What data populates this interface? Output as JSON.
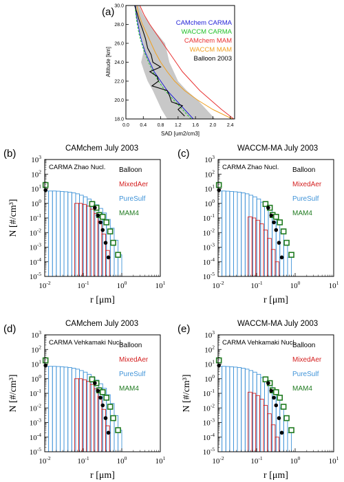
{
  "chart_data": [
    {
      "panel": "(a)",
      "type": "line",
      "title": "",
      "xlabel": "SAD [um2/cm3]",
      "ylabel": "Altitude [km]",
      "xlim": [
        0,
        2.5
      ],
      "ylim": [
        18,
        30
      ],
      "xticks": [
        "0.0",
        "0.4",
        "0.8",
        "1.2",
        "1.6",
        "2.0",
        "2.4"
      ],
      "yticks": [
        "18.0",
        "20.0",
        "22.0",
        "24.0",
        "26.0",
        "28.0",
        "30.0"
      ],
      "legend_position": "top-right",
      "colors": {
        "CAMchem CARMA": "#1f1fd6",
        "WACCM CARMA": "#22c02a",
        "CAMchem MAM": "#e83030",
        "WACCM MAM": "#f0a020",
        "Balloon 2003": "#000000"
      },
      "series": [
        {
          "name": "CAMchem CARMA",
          "style": "solid",
          "x": [
            1.55,
            1.35,
            1.15,
            0.95,
            0.8,
            0.65,
            0.55,
            0.45,
            0.38,
            0.32,
            0.28,
            0.24,
            0.22
          ],
          "y": [
            18,
            19,
            20,
            21,
            22,
            23,
            24,
            25,
            26,
            27,
            28,
            29,
            30
          ]
        },
        {
          "name": "WACCM CARMA",
          "style": "dashed",
          "x": [
            1.5,
            1.3,
            1.1,
            0.9,
            0.75,
            0.62,
            0.52,
            0.43,
            0.36,
            0.3,
            0.26,
            0.23,
            0.21
          ],
          "y": [
            18,
            19,
            20,
            21,
            22,
            23,
            24,
            25,
            26,
            27,
            28,
            29,
            30
          ]
        },
        {
          "name": "CAMchem MAM",
          "style": "solid",
          "x": [
            2.48,
            2.2,
            1.95,
            1.7,
            1.5,
            1.3,
            1.15,
            1.0,
            0.85,
            0.7,
            0.55,
            0.42,
            0.32
          ],
          "y": [
            18,
            19,
            20,
            21,
            22,
            23,
            24,
            25,
            26,
            27,
            28,
            29,
            30
          ]
        },
        {
          "name": "WACCM MAM",
          "style": "solid",
          "x": [
            2.45,
            2.0,
            1.65,
            1.35,
            1.12,
            0.95,
            0.8,
            0.68,
            0.58,
            0.48,
            0.38,
            0.3,
            0.25
          ],
          "y": [
            18,
            19,
            20,
            21,
            22,
            23,
            24,
            25,
            26,
            27,
            28,
            29,
            30
          ]
        },
        {
          "name": "Balloon 2003",
          "style": "solid",
          "x": [
            1.35,
            1.2,
            1.3,
            1.05,
            1.0,
            0.95,
            0.6,
            0.75,
            0.72,
            0.55,
            0.8,
            0.62,
            0.58,
            0.5,
            0.45,
            0.38,
            0.3,
            0.25,
            0.2
          ],
          "y": [
            18.3,
            19.0,
            19.4,
            19.8,
            20.5,
            21.0,
            21.5,
            22.0,
            22.5,
            23.0,
            23.5,
            24.0,
            24.8,
            25.5,
            26.5,
            27.5,
            28.5,
            29.3,
            30
          ]
        }
      ],
      "range_band": {
        "x_low": [
          0.95,
          0.82,
          0.72,
          0.62,
          0.5,
          0.42,
          0.35,
          0.4,
          0.4,
          0.33,
          0.28,
          0.22,
          0.2
        ],
        "x_high": [
          2.05,
          1.85,
          1.65,
          1.4,
          1.2,
          1.1,
          1.0,
          0.95,
          0.9,
          0.72,
          0.55,
          0.4,
          0.3
        ],
        "y": [
          18,
          19,
          20,
          21,
          22,
          23,
          24,
          25,
          26,
          27,
          28,
          29,
          30
        ]
      }
    },
    {
      "panel": "(b)",
      "type": "bar",
      "title": "CAMchem July 2003",
      "annotation": "CARMA Zhao Nucl.",
      "xlabel": "r [μm]",
      "ylabel": "N [#/cm³]",
      "legend": [
        {
          "name": "Balloon",
          "color": "#000000"
        },
        {
          "name": "MixedAer",
          "color": "#d42020"
        },
        {
          "name": "PureSulf",
          "color": "#3f93d8"
        },
        {
          "name": "MAM4",
          "color": "#1f7a1f"
        }
      ],
      "xlim": [
        0.01,
        10
      ],
      "ylim": [
        1e-05,
        1000
      ],
      "puresulf_edges": [
        0.01,
        0.0126,
        0.0159,
        0.02,
        0.0252,
        0.0317,
        0.04,
        0.0504,
        0.0635,
        0.08,
        0.1008,
        0.127,
        0.16,
        0.2016,
        0.254,
        0.32,
        0.4,
        0.504,
        0.635,
        0.8,
        1.0
      ],
      "puresulf_values": [
        7,
        7,
        7,
        6.8,
        6.5,
        6.2,
        5.8,
        5.2,
        4.5,
        3.6,
        2.8,
        2.0,
        1.3,
        0.8,
        0.45,
        0.22,
        0.08,
        0.02,
        0.003,
        0.0003
      ],
      "mixedaer_edges": [
        0.06,
        0.076,
        0.095,
        0.12,
        0.151,
        0.19,
        0.24,
        0.302,
        0.38,
        0.48
      ],
      "mixedaer_values": [
        1,
        1,
        0.85,
        0.65,
        0.4,
        0.2,
        0.06,
        0.008,
        0.0006
      ],
      "balloon": {
        "x": [
          0.0105,
          0.2,
          0.24,
          0.28,
          0.32,
          0.38,
          0.45
        ],
        "y": [
          8,
          0.5,
          0.15,
          0.05,
          0.015,
          0.002,
          0.0002
        ]
      },
      "mam4": {
        "x": [
          0.0105,
          0.17,
          0.22,
          0.26,
          0.32,
          0.4,
          0.5,
          0.6,
          0.8
        ],
        "y": [
          18,
          0.9,
          0.5,
          0.16,
          0.12,
          0.05,
          0.012,
          0.002,
          0.0003
        ]
      }
    },
    {
      "panel": "(c)",
      "type": "bar",
      "title": "WACCM-MA July 2003",
      "annotation": "CARMA Zhao Nucl.",
      "xlabel": "r [μm]",
      "ylabel": "",
      "legend": [
        {
          "name": "Balloon",
          "color": "#000000"
        },
        {
          "name": "MixedAer",
          "color": "#d42020"
        },
        {
          "name": "PureSulf",
          "color": "#3f93d8"
        },
        {
          "name": "MAM4",
          "color": "#1f7a1f"
        }
      ],
      "xlim": [
        0.01,
        10
      ],
      "ylim": [
        1e-05,
        1000
      ],
      "puresulf_edges": [
        0.01,
        0.0126,
        0.0159,
        0.02,
        0.0252,
        0.0317,
        0.04,
        0.0504,
        0.0635,
        0.08,
        0.1008,
        0.127,
        0.16,
        0.2016,
        0.254,
        0.32,
        0.4,
        0.504,
        0.635,
        0.8
      ],
      "puresulf_values": [
        7,
        7,
        6.8,
        6.5,
        6.2,
        5.8,
        5.2,
        4.5,
        3.6,
        2.8,
        2.0,
        1.2,
        0.7,
        0.35,
        0.15,
        0.05,
        0.01,
        0.0015,
        0.0002
      ],
      "mixedaer_edges": [
        0.06,
        0.076,
        0.095,
        0.12,
        0.151,
        0.19,
        0.24,
        0.302,
        0.38
      ],
      "mixedaer_values": [
        0.12,
        0.1,
        0.07,
        0.04,
        0.015,
        0.004,
        0.0007,
        0.0001
      ],
      "balloon": {
        "x": [
          0.0105,
          0.2,
          0.24,
          0.28,
          0.32,
          0.38,
          0.45
        ],
        "y": [
          8,
          0.5,
          0.15,
          0.05,
          0.015,
          0.002,
          0.0002
        ]
      },
      "mam4": {
        "x": [
          0.0105,
          0.17,
          0.22,
          0.26,
          0.32,
          0.4,
          0.5,
          0.6,
          0.8
        ],
        "y": [
          18,
          0.9,
          0.5,
          0.16,
          0.12,
          0.05,
          0.012,
          0.002,
          0.0003
        ]
      }
    },
    {
      "panel": "(d)",
      "type": "bar",
      "title": "CAMchem July 2003",
      "annotation": "CARMA Vehkamaki Nucl.",
      "xlabel": "r [μm]",
      "ylabel": "N [#/cm³]",
      "legend": [
        {
          "name": "Balloon",
          "color": "#000000"
        },
        {
          "name": "MixedAer",
          "color": "#d42020"
        },
        {
          "name": "PureSulf",
          "color": "#3f93d8"
        },
        {
          "name": "MAM4",
          "color": "#1f7a1f"
        }
      ],
      "xlim": [
        0.01,
        10
      ],
      "ylim": [
        1e-05,
        1000
      ],
      "puresulf_edges": [
        0.01,
        0.0126,
        0.0159,
        0.02,
        0.0252,
        0.0317,
        0.04,
        0.0504,
        0.0635,
        0.08,
        0.1008,
        0.127,
        0.16,
        0.2016,
        0.254,
        0.32,
        0.4,
        0.504,
        0.635,
        0.8,
        1.0
      ],
      "puresulf_values": [
        7,
        7,
        7,
        6.8,
        6.5,
        6.2,
        5.8,
        5.2,
        4.5,
        3.6,
        2.8,
        2.0,
        1.3,
        0.8,
        0.45,
        0.22,
        0.08,
        0.02,
        0.003,
        0.0003
      ],
      "mixedaer_edges": [
        0.06,
        0.076,
        0.095,
        0.12,
        0.151,
        0.19,
        0.24,
        0.302,
        0.38,
        0.48
      ],
      "mixedaer_values": [
        1,
        1,
        0.85,
        0.65,
        0.4,
        0.2,
        0.06,
        0.008,
        0.0006
      ],
      "balloon": {
        "x": [
          0.0105,
          0.2,
          0.24,
          0.28,
          0.32,
          0.38,
          0.45
        ],
        "y": [
          8,
          0.5,
          0.15,
          0.05,
          0.015,
          0.002,
          0.0002
        ]
      },
      "mam4": {
        "x": [
          0.0105,
          0.17,
          0.22,
          0.26,
          0.32,
          0.4,
          0.5,
          0.6,
          0.8
        ],
        "y": [
          18,
          0.9,
          0.5,
          0.16,
          0.12,
          0.05,
          0.012,
          0.002,
          0.0003
        ]
      }
    },
    {
      "panel": "(e)",
      "type": "bar",
      "title": "WACCM-MA July 2003",
      "annotation": "CARMA Vehkamaki Nucl.",
      "xlabel": "r [μm]",
      "ylabel": "N [#/cm³]",
      "legend": [
        {
          "name": "Balloon",
          "color": "#000000"
        },
        {
          "name": "MixedAer",
          "color": "#d42020"
        },
        {
          "name": "PureSulf",
          "color": "#3f93d8"
        },
        {
          "name": "MAM4",
          "color": "#1f7a1f"
        }
      ],
      "xlim": [
        0.01,
        10
      ],
      "ylim": [
        1e-05,
        1000
      ],
      "puresulf_edges": [
        0.01,
        0.0126,
        0.0159,
        0.02,
        0.0252,
        0.0317,
        0.04,
        0.0504,
        0.0635,
        0.08,
        0.1008,
        0.127,
        0.16,
        0.2016,
        0.254,
        0.32,
        0.4,
        0.504,
        0.635,
        0.8
      ],
      "puresulf_values": [
        7,
        7,
        6.8,
        6.5,
        6.2,
        5.8,
        5.2,
        4.5,
        3.6,
        2.8,
        2.0,
        1.2,
        0.7,
        0.35,
        0.15,
        0.05,
        0.01,
        0.0015,
        0.0002
      ],
      "mixedaer_edges": [
        0.06,
        0.076,
        0.095,
        0.12,
        0.151,
        0.19,
        0.24,
        0.302,
        0.38
      ],
      "mixedaer_values": [
        0.12,
        0.1,
        0.07,
        0.04,
        0.015,
        0.004,
        0.0007,
        0.0001
      ],
      "balloon": {
        "x": [
          0.0105,
          0.2,
          0.24,
          0.28,
          0.32,
          0.38,
          0.45
        ],
        "y": [
          8,
          0.5,
          0.15,
          0.05,
          0.015,
          0.002,
          0.0002
        ]
      },
      "mam4": {
        "x": [
          0.0105,
          0.17,
          0.22,
          0.26,
          0.32,
          0.4,
          0.5,
          0.6,
          0.8
        ],
        "y": [
          18,
          0.9,
          0.5,
          0.16,
          0.12,
          0.05,
          0.012,
          0.002,
          0.0003
        ]
      }
    }
  ]
}
